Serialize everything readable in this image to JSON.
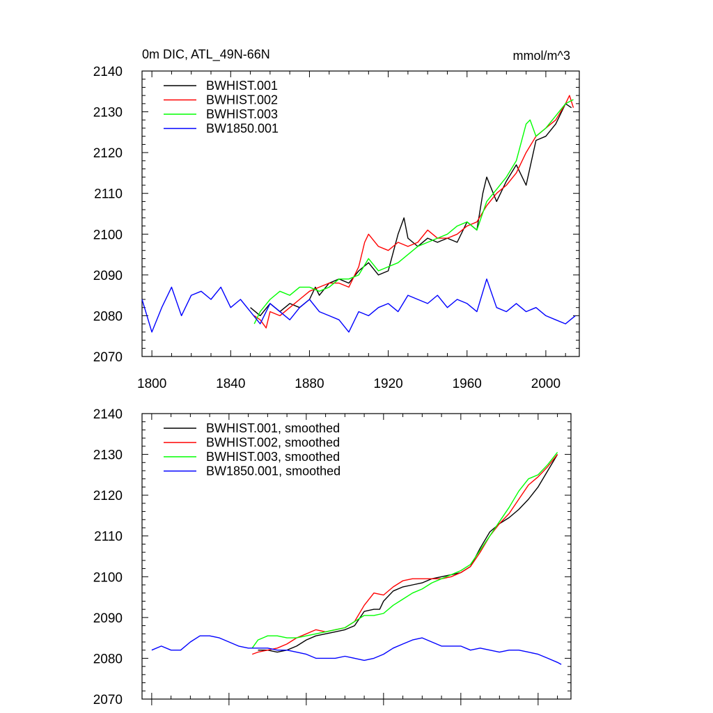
{
  "figure": {
    "title_left": "0m DIC, ATL_49N-66N",
    "title_right": "mmol/m^3"
  },
  "chart_data": [
    {
      "type": "line",
      "panel": "top",
      "ylim": [
        2070,
        2140
      ],
      "xlim": [
        1795,
        2017
      ],
      "x_ticks": [
        1800,
        1840,
        1880,
        1920,
        1960,
        2000
      ],
      "x_tick_labels": [
        "1800",
        "1840",
        "1880",
        "1920",
        "1960",
        "2000"
      ],
      "y_ticks": [
        2070,
        2080,
        2090,
        2100,
        2110,
        2120,
        2130,
        2140
      ],
      "y_tick_labels": [
        "2070",
        "2080",
        "2090",
        "2100",
        "2110",
        "2120",
        "2130",
        "2140"
      ],
      "legend_position": "top-left",
      "series": [
        {
          "name": "BWHIST.001",
          "color": "#000000",
          "x": [
            1850,
            1855,
            1860,
            1865,
            1870,
            1875,
            1880,
            1883,
            1885,
            1890,
            1895,
            1900,
            1905,
            1910,
            1915,
            1920,
            1925,
            1928,
            1930,
            1935,
            1940,
            1945,
            1950,
            1955,
            1960,
            1965,
            1968,
            1970,
            1975,
            1980,
            1985,
            1990,
            1995,
            2000,
            2005,
            2010,
            2013
          ],
          "values": [
            2082,
            2080,
            2083,
            2081,
            2083,
            2082,
            2084,
            2087,
            2085,
            2088,
            2089,
            2088,
            2091,
            2093,
            2090,
            2091,
            2100,
            2104,
            2099,
            2097,
            2099,
            2098,
            2099,
            2098,
            2103,
            2101,
            2110,
            2114,
            2108,
            2113,
            2117,
            2112,
            2123,
            2124,
            2127,
            2132,
            2131
          ]
        },
        {
          "name": "BWHIST.002",
          "color": "#ff0000",
          "x": [
            1852,
            1855,
            1858,
            1860,
            1865,
            1870,
            1875,
            1880,
            1885,
            1890,
            1895,
            1900,
            1905,
            1908,
            1910,
            1915,
            1920,
            1925,
            1930,
            1935,
            1940,
            1945,
            1950,
            1955,
            1960,
            1965,
            1970,
            1975,
            1980,
            1985,
            1990,
            1995,
            2000,
            2005,
            2010,
            2012,
            2014
          ],
          "values": [
            2080,
            2079,
            2077,
            2081,
            2080,
            2082,
            2084,
            2086,
            2087,
            2088,
            2088,
            2087,
            2092,
            2098,
            2100,
            2097,
            2096,
            2098,
            2097,
            2098,
            2101,
            2099,
            2099,
            2100,
            2102,
            2103,
            2107,
            2110,
            2112,
            2115,
            2120,
            2124,
            2126,
            2128,
            2132,
            2134,
            2131
          ]
        },
        {
          "name": "BWHIST.003",
          "color": "#00ff00",
          "x": [
            1852,
            1855,
            1860,
            1865,
            1870,
            1875,
            1880,
            1885,
            1890,
            1895,
            1900,
            1905,
            1910,
            1915,
            1920,
            1925,
            1930,
            1935,
            1940,
            1945,
            1950,
            1955,
            1960,
            1965,
            1970,
            1975,
            1980,
            1985,
            1990,
            1992,
            1995,
            2000,
            2005,
            2010,
            2014
          ],
          "values": [
            2078,
            2081,
            2084,
            2086,
            2085,
            2087,
            2087,
            2086,
            2087,
            2089,
            2089,
            2090,
            2094,
            2091,
            2092,
            2093,
            2095,
            2097,
            2098,
            2099,
            2100,
            2102,
            2103,
            2101,
            2108,
            2111,
            2114,
            2118,
            2127,
            2128,
            2124,
            2126,
            2129,
            2132,
            2133
          ]
        },
        {
          "name": "BW1850.001",
          "color": "#0000ff",
          "x": [
            1795,
            1800,
            1805,
            1810,
            1815,
            1820,
            1825,
            1830,
            1835,
            1840,
            1845,
            1850,
            1855,
            1860,
            1865,
            1870,
            1875,
            1880,
            1885,
            1890,
            1895,
            1900,
            1905,
            1910,
            1915,
            1920,
            1925,
            1930,
            1935,
            1940,
            1945,
            1950,
            1955,
            1960,
            1965,
            1970,
            1975,
            1980,
            1985,
            1990,
            1995,
            2000,
            2005,
            2010,
            2015
          ],
          "values": [
            2084,
            2076,
            2082,
            2087,
            2080,
            2085,
            2086,
            2084,
            2087,
            2082,
            2084,
            2081,
            2078,
            2083,
            2081,
            2079,
            2082,
            2084,
            2081,
            2080,
            2079,
            2076,
            2081,
            2080,
            2082,
            2083,
            2081,
            2085,
            2084,
            2083,
            2085,
            2082,
            2084,
            2083,
            2081,
            2089,
            2082,
            2081,
            2083,
            2081,
            2082,
            2080,
            2079,
            2078,
            2080
          ]
        }
      ]
    },
    {
      "type": "line",
      "panel": "bottom",
      "ylim": [
        2070,
        2140
      ],
      "xlim": [
        1795,
        2017
      ],
      "x_ticks": [
        1800,
        1840,
        1880,
        1920,
        1960,
        2000
      ],
      "y_ticks": [
        2070,
        2080,
        2090,
        2100,
        2110,
        2120,
        2130,
        2140
      ],
      "y_tick_labels": [
        "2070",
        "2080",
        "2090",
        "2100",
        "2110",
        "2120",
        "2130",
        "2140"
      ],
      "legend_position": "top-left",
      "series": [
        {
          "name": "BWHIST.001, smoothed",
          "color": "#000000",
          "x": [
            1855,
            1860,
            1865,
            1870,
            1875,
            1880,
            1885,
            1890,
            1895,
            1900,
            1905,
            1910,
            1915,
            1918,
            1920,
            1925,
            1930,
            1935,
            1940,
            1945,
            1950,
            1955,
            1960,
            1965,
            1970,
            1975,
            1980,
            1985,
            1990,
            1995,
            2000,
            2005,
            2010
          ],
          "values": [
            2082,
            2082,
            2081.5,
            2082,
            2083,
            2084.5,
            2085.5,
            2086,
            2086.5,
            2087,
            2088,
            2091.5,
            2092,
            2092,
            2094,
            2096.5,
            2097.5,
            2098,
            2098.5,
            2099.5,
            2100,
            2100.5,
            2101,
            2102.5,
            2107,
            2111,
            2113,
            2114.5,
            2116.5,
            2119,
            2122,
            2126,
            2130
          ]
        },
        {
          "name": "BWHIST.002, smoothed",
          "color": "#ff0000",
          "x": [
            1852,
            1855,
            1860,
            1865,
            1870,
            1875,
            1880,
            1885,
            1890,
            1895,
            1900,
            1905,
            1910,
            1915,
            1920,
            1925,
            1930,
            1935,
            1940,
            1945,
            1950,
            1955,
            1960,
            1965,
            1970,
            1975,
            1980,
            1985,
            1990,
            1995,
            2000,
            2005,
            2010
          ],
          "values": [
            2081,
            2081.5,
            2082,
            2082.5,
            2083.5,
            2085,
            2086,
            2087,
            2086.5,
            2087,
            2087.5,
            2089,
            2093,
            2096,
            2095.5,
            2097.5,
            2099,
            2099.5,
            2099.5,
            2099.5,
            2099.5,
            2100,
            2101,
            2102.5,
            2106,
            2110,
            2113,
            2115.5,
            2119,
            2122.5,
            2124.5,
            2127,
            2130
          ]
        },
        {
          "name": "BWHIST.003, smoothed",
          "color": "#00ff00",
          "x": [
            1852,
            1855,
            1860,
            1865,
            1870,
            1875,
            1880,
            1885,
            1890,
            1895,
            1900,
            1905,
            1910,
            1915,
            1920,
            1925,
            1930,
            1935,
            1940,
            1945,
            1950,
            1955,
            1960,
            1965,
            1970,
            1975,
            1980,
            1985,
            1990,
            1995,
            2000,
            2005,
            2010
          ],
          "values": [
            2082.5,
            2084.5,
            2085.5,
            2085.5,
            2085,
            2085,
            2085.5,
            2086,
            2086.5,
            2087,
            2087.5,
            2089,
            2090.5,
            2090.5,
            2091,
            2093,
            2094.5,
            2096,
            2097,
            2098.5,
            2099.5,
            2100.5,
            2101.5,
            2103,
            2106.5,
            2110,
            2113.5,
            2117,
            2121,
            2124,
            2125,
            2127.5,
            2130.5
          ]
        },
        {
          "name": "BW1850.001, smoothed",
          "color": "#0000ff",
          "x": [
            1800,
            1805,
            1810,
            1815,
            1820,
            1825,
            1830,
            1835,
            1840,
            1845,
            1850,
            1855,
            1860,
            1865,
            1870,
            1875,
            1880,
            1885,
            1890,
            1895,
            1900,
            1905,
            1910,
            1915,
            1920,
            1925,
            1930,
            1935,
            1940,
            1945,
            1950,
            1955,
            1960,
            1965,
            1970,
            1975,
            1980,
            1985,
            1990,
            1995,
            2000,
            2005,
            2010,
            2012
          ],
          "values": [
            2082,
            2083,
            2082,
            2082,
            2084,
            2085.5,
            2085.5,
            2085,
            2084,
            2083,
            2082.5,
            2082.5,
            2082.5,
            2082,
            2082,
            2081.5,
            2081,
            2080,
            2080,
            2080,
            2080.5,
            2080,
            2079.5,
            2080,
            2081,
            2082.5,
            2083.5,
            2084.5,
            2085,
            2084,
            2083,
            2083,
            2083,
            2082,
            2082.5,
            2082,
            2081.5,
            2082,
            2082,
            2081.5,
            2081,
            2080,
            2079,
            2078.5
          ]
        }
      ]
    }
  ]
}
